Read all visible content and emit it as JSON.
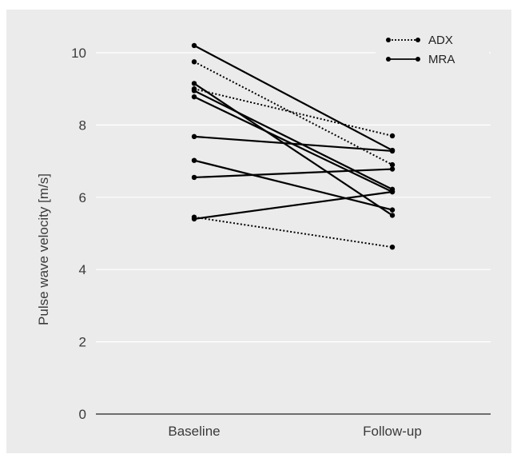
{
  "chart_data": {
    "type": "line",
    "title": "",
    "xlabel": "",
    "ylabel": "Pulse wave velocity [m/s]",
    "categories": [
      "Baseline",
      "Follow-up"
    ],
    "ylim": [
      0,
      10
    ],
    "yticks": [
      0,
      2,
      4,
      6,
      8,
      10
    ],
    "grid": true,
    "legend": "top-right",
    "colors": {
      "background": "#ebebeb",
      "grid": "#ffffff",
      "axis": "#444444",
      "line": "#000000"
    },
    "groups": [
      {
        "name": "ADX",
        "style": "dotted"
      },
      {
        "name": "MRA",
        "style": "solid"
      }
    ],
    "series": [
      {
        "group": "ADX",
        "values": [
          9.75,
          6.9
        ]
      },
      {
        "group": "ADX",
        "values": [
          9.0,
          7.7
        ]
      },
      {
        "group": "ADX",
        "values": [
          5.45,
          4.62
        ]
      },
      {
        "group": "MRA",
        "values": [
          10.2,
          7.3
        ]
      },
      {
        "group": "MRA",
        "values": [
          9.15,
          5.5
        ]
      },
      {
        "group": "MRA",
        "values": [
          8.78,
          6.15
        ]
      },
      {
        "group": "MRA",
        "values": [
          8.95,
          6.22
        ]
      },
      {
        "group": "MRA",
        "values": [
          7.68,
          7.28
        ]
      },
      {
        "group": "MRA",
        "values": [
          7.02,
          5.65
        ]
      },
      {
        "group": "MRA",
        "values": [
          6.55,
          6.78
        ]
      },
      {
        "group": "MRA",
        "values": [
          5.4,
          6.15
        ]
      }
    ]
  }
}
